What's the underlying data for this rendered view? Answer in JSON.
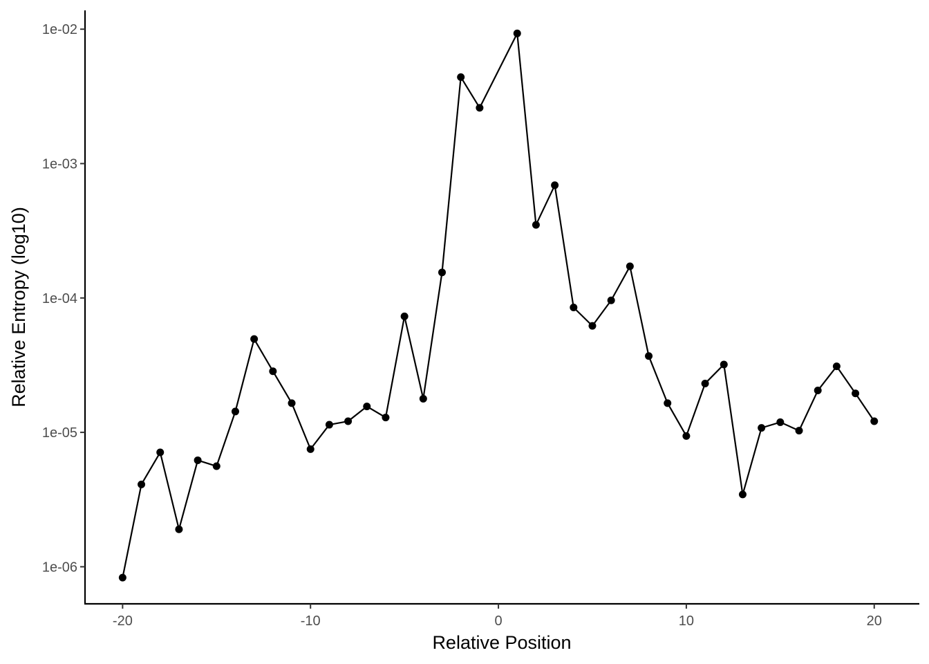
{
  "chart_data": {
    "type": "line",
    "title": "",
    "xlabel": "Relative Position",
    "ylabel": "Relative Entropy (log10)",
    "y_scale": "log10",
    "xlim": [
      -22,
      22.4
    ],
    "ylim": [
      5.3e-07,
      0.0138
    ],
    "grid": false,
    "x_ticks": [
      -20,
      -10,
      0,
      10,
      20
    ],
    "x_tick_labels": [
      "-20",
      "-10",
      "0",
      "10",
      "20"
    ],
    "y_ticks": [
      1e-06,
      1e-05,
      0.0001,
      0.001,
      0.01
    ],
    "y_tick_labels": [
      "1e-06",
      "1e-05",
      "1e-04",
      "1e-03",
      "1e-02"
    ],
    "line_color": "#000000",
    "point_color": "#000000",
    "x": [
      -20,
      -19,
      -18,
      -17,
      -16,
      -15,
      -14,
      -13,
      -12,
      -11,
      -10,
      -9,
      -8,
      -7,
      -6,
      -5,
      -4,
      -3,
      -2,
      -1,
      1,
      2,
      3,
      4,
      5,
      6,
      7,
      8,
      9,
      10,
      11,
      12,
      13,
      14,
      15,
      16,
      17,
      18,
      19,
      20
    ],
    "y": [
      8.3e-07,
      4.1e-06,
      7.1e-06,
      1.9e-06,
      6.2e-06,
      5.6e-06,
      1.43e-05,
      4.95e-05,
      2.85e-05,
      1.65e-05,
      7.5e-06,
      1.14e-05,
      1.21e-05,
      1.56e-05,
      1.29e-05,
      7.3e-05,
      1.78e-05,
      0.000155,
      0.0044,
      0.0026,
      0.0093,
      0.00035,
      0.00069,
      8.5e-05,
      6.2e-05,
      9.6e-05,
      0.000172,
      3.7e-05,
      1.65e-05,
      9.4e-06,
      2.31e-05,
      3.2e-05,
      3.45e-06,
      1.08e-05,
      1.19e-05,
      1.03e-05,
      2.05e-05,
      3.1e-05,
      1.95e-05,
      1.21e-05
    ]
  }
}
